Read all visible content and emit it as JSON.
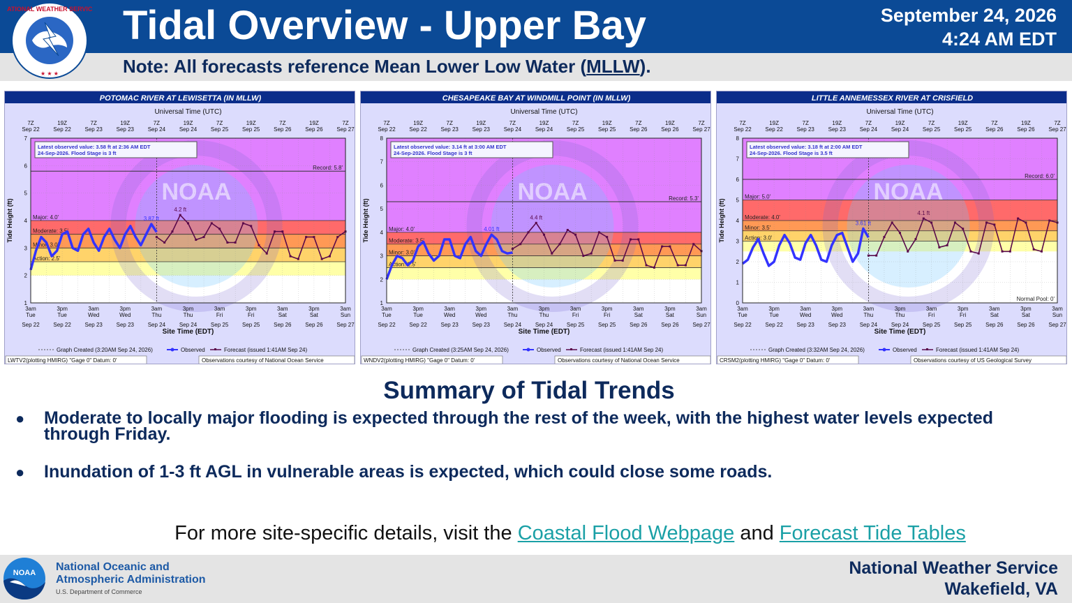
{
  "header": {
    "title": "Tidal Overview - Upper Bay",
    "date": "September 24, 2026",
    "time": "4:24 AM EDT",
    "note_prefix": "Note: All forecasts reference Mean Lower Low Water (",
    "note_abbrev": "MLLW",
    "note_suffix": ").",
    "logo_text": "NATIONAL WEATHER SERVICE"
  },
  "charts_common": {
    "top_axis_title": "Universal Time (UTC)",
    "bottom_axis_title": "Site Time (EDT)",
    "y_axis_title": "Tide Height (ft)",
    "top_ticks": [
      [
        "7Z",
        "Sep 22"
      ],
      [
        "19Z",
        "Sep 22"
      ],
      [
        "7Z",
        "Sep 23"
      ],
      [
        "19Z",
        "Sep 23"
      ],
      [
        "7Z",
        "Sep 24"
      ],
      [
        "19Z",
        "Sep 24"
      ],
      [
        "7Z",
        "Sep 25"
      ],
      [
        "19Z",
        "Sep 25"
      ],
      [
        "7Z",
        "Sep 26"
      ],
      [
        "19Z",
        "Sep 26"
      ],
      [
        "7Z",
        "Sep 27"
      ]
    ],
    "bottom_ticks": [
      [
        "3am",
        "Tue",
        "Sep 22"
      ],
      [
        "3pm",
        "Tue",
        "Sep 22"
      ],
      [
        "3am",
        "Wed",
        "Sep 23"
      ],
      [
        "3pm",
        "Wed",
        "Sep 23"
      ],
      [
        "3am",
        "Thu",
        "Sep 24"
      ],
      [
        "3pm",
        "Thu",
        "Sep 24"
      ],
      [
        "3am",
        "Fri",
        "Sep 25"
      ],
      [
        "3pm",
        "Fri",
        "Sep 25"
      ],
      [
        "3am",
        "Sat",
        "Sep 26"
      ],
      [
        "3pm",
        "Sat",
        "Sep 26"
      ],
      [
        "3am",
        "Sun",
        "Sep 27"
      ]
    ],
    "legend_observed": "Observed",
    "legend_forecast": "Forecast (issued 1:41AM Sep 24)",
    "watermark": "NOAA",
    "colors": {
      "major": "#ff6a6a",
      "moderate": "#ff9955",
      "minor": "#ffd36a",
      "action": "#ffffa8",
      "record_zone": "#e080ff",
      "observed": "#3333ff",
      "forecast": "#5a0a4a",
      "frame": "#dcdcfd",
      "title_bar": "#0b2d8a"
    }
  },
  "chart_data": [
    {
      "type": "line",
      "title": "POTOMAC RIVER AT LEWISETTA (IN MLLW)",
      "ylim": [
        1,
        7
      ],
      "yticks": [
        1,
        2,
        3,
        4,
        5,
        6,
        7
      ],
      "x_range_hours": [
        0,
        120
      ],
      "thresholds": [
        {
          "name": "Record",
          "value": 5.8,
          "label": "Record: 5.8'"
        },
        {
          "name": "Major",
          "value": 4.0,
          "label": "Major: 4.0'"
        },
        {
          "name": "Moderate",
          "value": 3.5,
          "label": "Moderate: 3.5'"
        },
        {
          "name": "Minor",
          "value": 3.0,
          "label": "Minor: 3.0'"
        },
        {
          "name": "Action",
          "value": 2.5,
          "label": "Action: 2.5'"
        }
      ],
      "latest_observed": "Latest observed value: 3.58 ft at 2:36 AM EDT",
      "flood_stage": "24-Sep-2026. Flood Stage is 3 ft",
      "observed_peak_label": "3.87 ft",
      "forecast_peak_label": "4.2 ft",
      "graph_created": "Graph Created (3:20AM Sep 24, 2026)",
      "station_note": "LWTV2(plotting HMIRG) \"Gage 0\" Datum: 0'",
      "courtesy": "Observations courtesy of National Ocean Service",
      "series": [
        {
          "name": "Observed",
          "x_hours": [
            0,
            2,
            4,
            6,
            8,
            10,
            12,
            14,
            16,
            18,
            20,
            22,
            24,
            26,
            28,
            30,
            32,
            34,
            36,
            38,
            40,
            42,
            44,
            46,
            48
          ],
          "values": [
            2.2,
            2.9,
            3.4,
            3.2,
            2.7,
            2.9,
            3.5,
            3.6,
            3.0,
            2.9,
            3.5,
            3.7,
            3.2,
            2.9,
            3.4,
            3.7,
            3.3,
            3.0,
            3.5,
            3.8,
            3.4,
            3.1,
            3.5,
            3.87,
            3.58
          ]
        },
        {
          "name": "Forecast",
          "x_hours": [
            48,
            51,
            54,
            57,
            60,
            63,
            66,
            69,
            72,
            75,
            78,
            81,
            84,
            87,
            90,
            93,
            96,
            99,
            102,
            105,
            108,
            111,
            114,
            117,
            120
          ],
          "values": [
            3.4,
            3.2,
            3.6,
            4.2,
            3.9,
            3.3,
            3.4,
            3.9,
            3.7,
            3.2,
            3.2,
            3.9,
            3.8,
            3.1,
            2.8,
            3.6,
            3.6,
            2.7,
            2.6,
            3.4,
            3.4,
            2.6,
            2.7,
            3.4,
            3.6
          ]
        }
      ]
    },
    {
      "type": "line",
      "title": "CHESAPEAKE BAY AT WINDMILL POINT (IN MLLW)",
      "ylim": [
        1,
        8
      ],
      "yticks": [
        1,
        2,
        3,
        4,
        5,
        6,
        7,
        8
      ],
      "x_range_hours": [
        0,
        120
      ],
      "thresholds": [
        {
          "name": "Record",
          "value": 5.3,
          "label": "Record: 5.3'"
        },
        {
          "name": "Major",
          "value": 4.0,
          "label": "Major: 4.0'"
        },
        {
          "name": "Moderate",
          "value": 3.5,
          "label": "Moderate: 3.5'"
        },
        {
          "name": "Minor",
          "value": 3.0,
          "label": "Minor: 3.0'"
        },
        {
          "name": "Action",
          "value": 2.5,
          "label": "Action: 2.5'"
        }
      ],
      "latest_observed": "Latest observed value: 3.14 ft at 3:00 AM EDT",
      "flood_stage": "24-Sep-2026. Flood Stage is 3 ft",
      "observed_peak_label": "4.01 ft",
      "forecast_peak_label": "4.4 ft",
      "graph_created": "Graph Created (3:25AM Sep 24, 2026)",
      "station_note": "WNDV2(plotting HMIRG) \"Gage 0\" Datum: 0'",
      "courtesy": "Observations courtesy of National Ocean Service",
      "series": [
        {
          "name": "Observed",
          "x_hours": [
            0,
            2,
            4,
            6,
            8,
            10,
            12,
            14,
            16,
            18,
            20,
            22,
            24,
            26,
            28,
            30,
            32,
            34,
            36,
            38,
            40,
            42,
            44,
            46,
            48
          ],
          "values": [
            2.0,
            2.6,
            3.0,
            2.9,
            2.6,
            2.8,
            3.4,
            3.6,
            3.1,
            2.8,
            3.0,
            3.7,
            3.7,
            3.0,
            2.9,
            3.5,
            3.8,
            3.2,
            3.0,
            3.5,
            3.9,
            3.7,
            3.2,
            3.1,
            3.14
          ]
        },
        {
          "name": "Forecast",
          "x_hours": [
            48,
            51,
            54,
            57,
            60,
            63,
            66,
            69,
            72,
            75,
            78,
            81,
            84,
            87,
            90,
            93,
            96,
            99,
            102,
            105,
            108,
            111,
            114,
            117,
            120
          ],
          "values": [
            3.3,
            3.5,
            4.0,
            4.4,
            3.9,
            3.1,
            3.5,
            4.1,
            3.9,
            3.0,
            3.1,
            4.0,
            3.8,
            2.8,
            2.8,
            3.7,
            3.7,
            2.6,
            2.5,
            3.4,
            3.4,
            2.6,
            2.6,
            3.5,
            3.2
          ]
        }
      ]
    },
    {
      "type": "line",
      "title": "LITTLE ANNEMESSEX RIVER AT CRISFIELD",
      "ylim": [
        0,
        8
      ],
      "yticks": [
        0,
        1,
        2,
        3,
        4,
        5,
        6,
        7,
        8
      ],
      "x_range_hours": [
        0,
        120
      ],
      "thresholds": [
        {
          "name": "Record",
          "value": 6.0,
          "label": "Record: 6.0'"
        },
        {
          "name": "Major",
          "value": 5.0,
          "label": "Major: 5.0'"
        },
        {
          "name": "Moderate",
          "value": 4.0,
          "label": "Moderate: 4.0'"
        },
        {
          "name": "Minor",
          "value": 3.5,
          "label": "Minor: 3.5'"
        },
        {
          "name": "Action",
          "value": 3.0,
          "label": "Action: 3.0'"
        },
        {
          "name": "Normal Pool",
          "value": 0,
          "label": "Normal Pool: 0'"
        }
      ],
      "latest_observed": "Latest observed value: 3.18 ft at 2:00 AM EDT",
      "flood_stage": "24-Sep-2026. Flood Stage is 3.5 ft",
      "observed_peak_label": "3.61 ft",
      "forecast_peak_label": "4.1 ft",
      "graph_created": "Graph Created (3:32AM Sep 24, 2026)",
      "station_note": "CRSM2(plotting HMIRG) \"Gage 0\" Datum: 0'",
      "courtesy": "Observations courtesy of US Geological Survey",
      "series": [
        {
          "name": "Observed",
          "x_hours": [
            0,
            2,
            4,
            6,
            8,
            10,
            12,
            14,
            16,
            18,
            20,
            22,
            24,
            26,
            28,
            30,
            32,
            34,
            36,
            38,
            40,
            42,
            44,
            46,
            48
          ],
          "values": [
            1.9,
            2.1,
            2.7,
            3.1,
            2.4,
            1.8,
            2.0,
            2.8,
            3.3,
            2.9,
            2.2,
            2.1,
            2.9,
            3.3,
            2.8,
            2.1,
            2.0,
            2.8,
            3.3,
            3.4,
            2.7,
            2.0,
            2.4,
            3.61,
            3.18
          ]
        },
        {
          "name": "Forecast",
          "x_hours": [
            48,
            51,
            54,
            57,
            60,
            63,
            66,
            69,
            72,
            75,
            78,
            81,
            84,
            87,
            90,
            93,
            96,
            99,
            102,
            105,
            108,
            111,
            114,
            117,
            120
          ],
          "values": [
            2.3,
            2.3,
            3.2,
            3.9,
            3.4,
            2.5,
            3.1,
            4.1,
            3.9,
            2.7,
            2.8,
            3.9,
            3.6,
            2.5,
            2.4,
            3.9,
            3.8,
            2.5,
            2.5,
            4.1,
            3.9,
            2.6,
            2.5,
            4.0,
            3.9
          ]
        }
      ]
    }
  ],
  "summary": {
    "title": "Summary of Tidal Trends",
    "bullet_symbol": "●",
    "bullets": [
      "Moderate to locally major flooding is expected through the rest of the week, with the highest water levels expected through Friday.",
      "Inundation of 1-3 ft AGL in vulnerable areas is expected, which could close some roads."
    ]
  },
  "more_details": {
    "prefix": "For more site-specific details, visit the ",
    "link1": "Coastal Flood Webpage",
    "middle": " and ",
    "link2": "Forecast Tide Tables"
  },
  "footer": {
    "org_line1": "National Oceanic and",
    "org_line2": "Atmospheric Administration",
    "dept": "U.S. Department of Commerce",
    "noaa_logo_text": "NOAA",
    "office_line1": "National Weather Service",
    "office_line2": "Wakefield, VA"
  }
}
